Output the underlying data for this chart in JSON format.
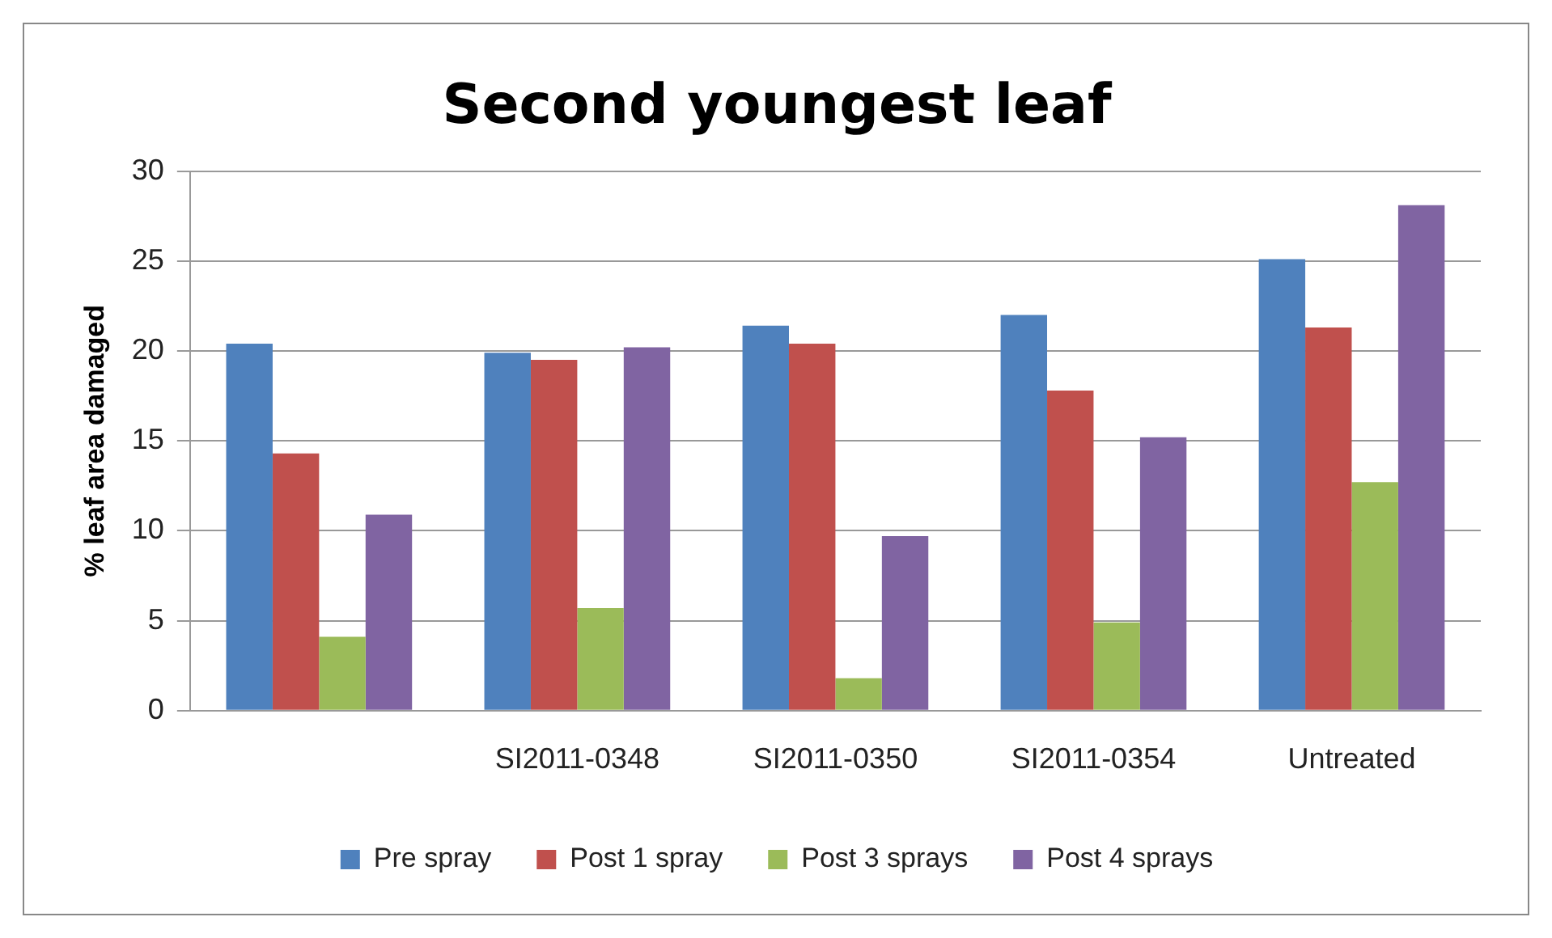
{
  "chart_data": {
    "type": "bar",
    "title": "Second youngest leaf",
    "ylabel": "% leaf area damaged",
    "categories": [
      null,
      "SI2011-0348",
      "SI2011-0350",
      "SI2011-0354",
      "Untreated"
    ],
    "series": [
      {
        "name": "Pre spray",
        "color": "#4f81bd",
        "values": [
          20.4,
          19.9,
          21.4,
          22.0,
          25.1
        ]
      },
      {
        "name": "Post 1 spray",
        "color": "#c0504d",
        "values": [
          14.3,
          19.5,
          20.4,
          17.8,
          21.3
        ]
      },
      {
        "name": "Post 3 sprays",
        "color": "#9bbb59",
        "values": [
          4.1,
          5.7,
          1.8,
          4.9,
          12.7
        ]
      },
      {
        "name": "Post 4 sprays",
        "color": "#8064a2",
        "values": [
          10.9,
          20.2,
          9.7,
          15.2,
          28.1
        ]
      }
    ],
    "ylim": [
      0,
      30
    ],
    "yticks": [
      0,
      5,
      10,
      15,
      20,
      25,
      30
    ],
    "grid": "y",
    "legend": "bottom"
  }
}
